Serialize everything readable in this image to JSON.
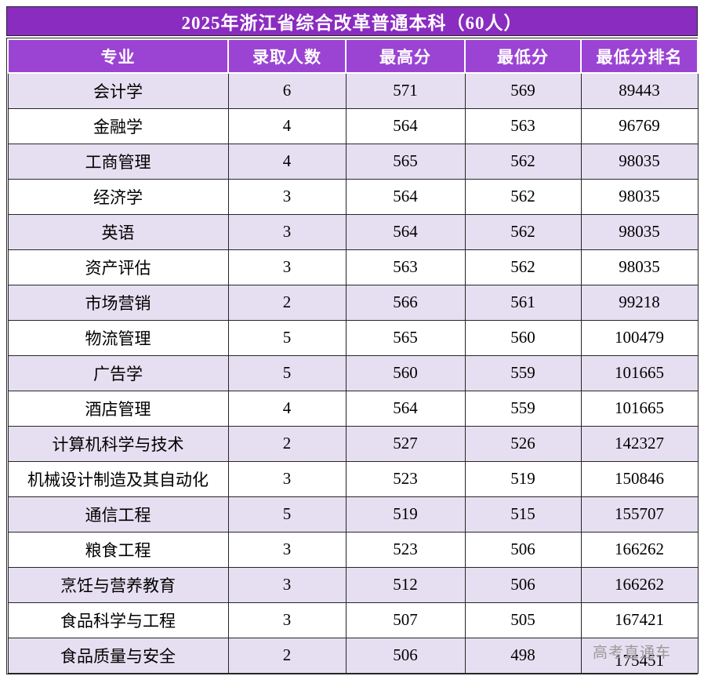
{
  "watermark": "高考直通车",
  "colors": {
    "title_bg": "#8a2cc0",
    "header_bg": "#9b44d4",
    "row_alt_bg": "#e6dff1",
    "row_bg": "#ffffff",
    "border": "#262626",
    "header_text": "#ffffff",
    "body_text": "#000000",
    "watermark_text": "#999999"
  },
  "chart_data": {
    "type": "table",
    "title": "2025年浙江省综合改革普通本科（60人）",
    "columns": [
      "专业",
      "录取人数",
      "最高分",
      "最低分",
      "最低分排名"
    ],
    "rows": [
      [
        "会计学",
        6,
        571,
        569,
        89443
      ],
      [
        "金融学",
        4,
        564,
        563,
        96769
      ],
      [
        "工商管理",
        4,
        565,
        562,
        98035
      ],
      [
        "经济学",
        3,
        564,
        562,
        98035
      ],
      [
        "英语",
        3,
        564,
        562,
        98035
      ],
      [
        "资产评估",
        3,
        563,
        562,
        98035
      ],
      [
        "市场营销",
        2,
        566,
        561,
        99218
      ],
      [
        "物流管理",
        5,
        565,
        560,
        100479
      ],
      [
        "广告学",
        5,
        560,
        559,
        101665
      ],
      [
        "酒店管理",
        4,
        564,
        559,
        101665
      ],
      [
        "计算机科学与技术",
        2,
        527,
        526,
        142327
      ],
      [
        "机械设计制造及其自动化",
        3,
        523,
        519,
        150846
      ],
      [
        "通信工程",
        5,
        519,
        515,
        155707
      ],
      [
        "粮食工程",
        3,
        523,
        506,
        166262
      ],
      [
        "烹饪与营养教育",
        3,
        512,
        506,
        166262
      ],
      [
        "食品科学与工程",
        3,
        507,
        505,
        167421
      ],
      [
        "食品质量与安全",
        2,
        506,
        498,
        175451
      ]
    ]
  }
}
